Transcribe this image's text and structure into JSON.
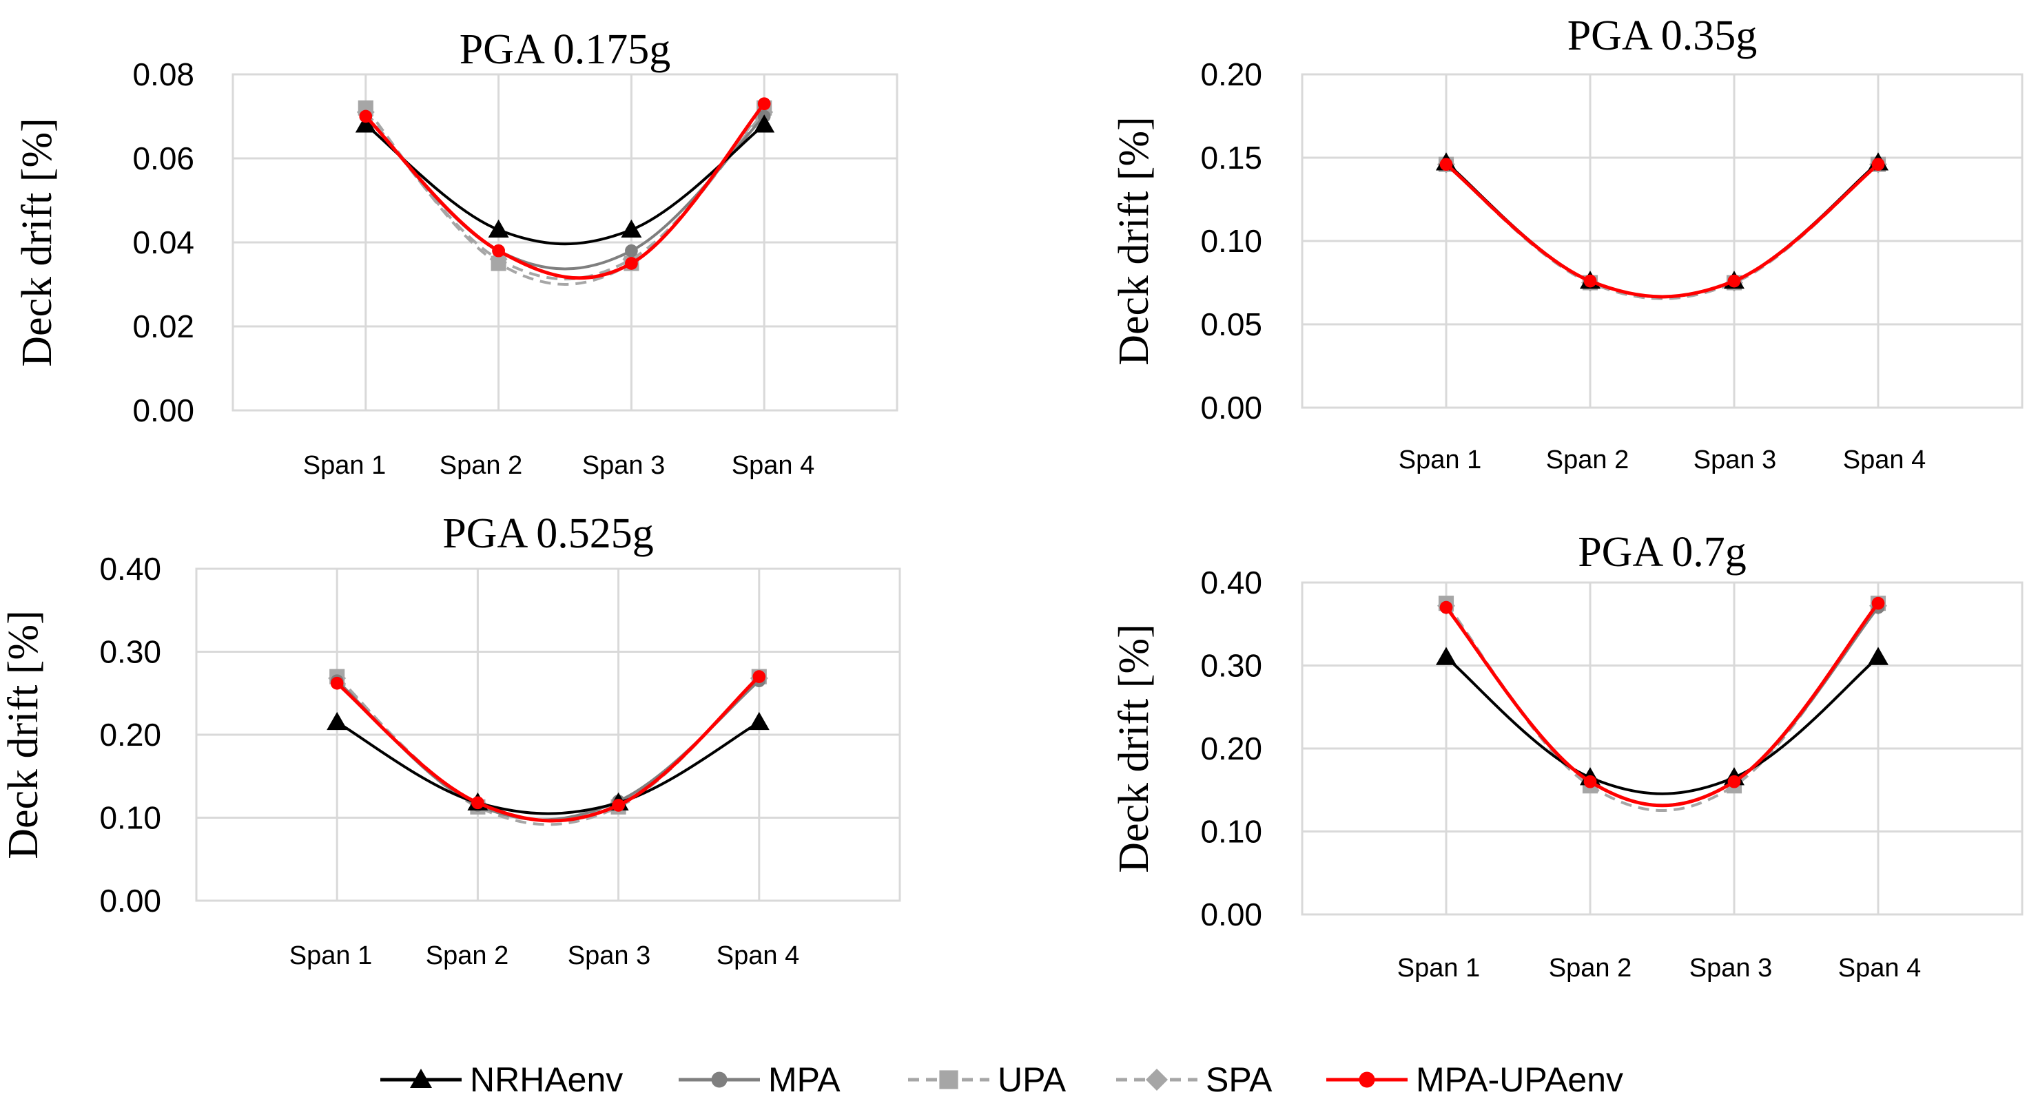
{
  "figure": {
    "y_label": "Deck drift [%]",
    "categories": [
      "Span 1",
      "Span 2",
      "Span 3",
      "Span 4"
    ],
    "legend": [
      {
        "name": "NRHAenv",
        "color": "#000000",
        "marker": "triangle",
        "dash": "solid"
      },
      {
        "name": "MPA",
        "color": "#7f7f7f",
        "marker": "circle",
        "dash": "solid"
      },
      {
        "name": "UPA",
        "color": "#a6a6a6",
        "marker": "square",
        "dash": "dashed"
      },
      {
        "name": "SPA",
        "color": "#a6a6a6",
        "marker": "diamond",
        "dash": "dashed"
      },
      {
        "name": "MPA-UPAenv",
        "color": "#ff0000",
        "marker": "circle",
        "dash": "solid"
      }
    ]
  },
  "chart_data": [
    {
      "type": "line",
      "title": "PGA 0.175g",
      "ylabel": "Deck drift [%]",
      "categories": [
        "Span 1",
        "Span 2",
        "Span 3",
        "Span 4"
      ],
      "ylim": [
        0,
        0.08
      ],
      "yticks": [
        "0.00",
        "0.02",
        "0.04",
        "0.06",
        "0.08"
      ],
      "series": [
        {
          "name": "NRHAenv",
          "values": [
            0.068,
            0.043,
            0.043,
            0.068
          ]
        },
        {
          "name": "MPA",
          "values": [
            0.07,
            0.038,
            0.038,
            0.07
          ]
        },
        {
          "name": "UPA",
          "values": [
            0.072,
            0.035,
            0.035,
            0.072
          ]
        },
        {
          "name": "SPA",
          "values": [
            0.071,
            0.036,
            0.036,
            0.071
          ]
        },
        {
          "name": "MPA-UPAenv",
          "values": [
            0.07,
            0.038,
            0.035,
            0.073
          ]
        }
      ]
    },
    {
      "type": "line",
      "title": "PGA 0.35g",
      "ylabel": "Deck drift [%]",
      "categories": [
        "Span 1",
        "Span 2",
        "Span 3",
        "Span 4"
      ],
      "ylim": [
        0,
        0.2
      ],
      "yticks": [
        "0.00",
        "0.05",
        "0.10",
        "0.15",
        "0.20"
      ],
      "series": [
        {
          "name": "NRHAenv",
          "values": [
            0.147,
            0.076,
            0.076,
            0.147
          ]
        },
        {
          "name": "MPA",
          "values": [
            0.146,
            0.076,
            0.076,
            0.146
          ]
        },
        {
          "name": "UPA",
          "values": [
            0.146,
            0.075,
            0.075,
            0.146
          ]
        },
        {
          "name": "SPA",
          "values": [
            0.146,
            0.075,
            0.075,
            0.146
          ]
        },
        {
          "name": "MPA-UPAenv",
          "values": [
            0.146,
            0.076,
            0.076,
            0.146
          ]
        }
      ]
    },
    {
      "type": "line",
      "title": "PGA 0.525g",
      "ylabel": "Deck drift [%]",
      "categories": [
        "Span 1",
        "Span 2",
        "Span 3",
        "Span 4"
      ],
      "ylim": [
        0,
        0.4
      ],
      "yticks": [
        "0.00",
        "0.10",
        "0.20",
        "0.30",
        "0.40"
      ],
      "series": [
        {
          "name": "NRHAenv",
          "values": [
            0.215,
            0.118,
            0.118,
            0.215
          ]
        },
        {
          "name": "MPA",
          "values": [
            0.265,
            0.115,
            0.12,
            0.265
          ]
        },
        {
          "name": "UPA",
          "values": [
            0.27,
            0.113,
            0.113,
            0.27
          ]
        },
        {
          "name": "SPA",
          "values": [
            0.268,
            0.117,
            0.117,
            0.268
          ]
        },
        {
          "name": "MPA-UPAenv",
          "values": [
            0.262,
            0.118,
            0.115,
            0.27
          ]
        }
      ]
    },
    {
      "type": "line",
      "title": "PGA 0.7g",
      "ylabel": "Deck drift [%]",
      "categories": [
        "Span 1",
        "Span 2",
        "Span 3",
        "Span 4"
      ],
      "ylim": [
        0,
        0.4
      ],
      "yticks": [
        "0.00",
        "0.10",
        "0.20",
        "0.30",
        "0.40"
      ],
      "series": [
        {
          "name": "NRHAenv",
          "values": [
            0.31,
            0.165,
            0.165,
            0.31
          ]
        },
        {
          "name": "MPA",
          "values": [
            0.37,
            0.16,
            0.16,
            0.37
          ]
        },
        {
          "name": "UPA",
          "values": [
            0.375,
            0.155,
            0.155,
            0.375
          ]
        },
        {
          "name": "SPA",
          "values": [
            0.372,
            0.16,
            0.16,
            0.372
          ]
        },
        {
          "name": "MPA-UPAenv",
          "values": [
            0.37,
            0.16,
            0.16,
            0.375
          ]
        }
      ]
    }
  ]
}
